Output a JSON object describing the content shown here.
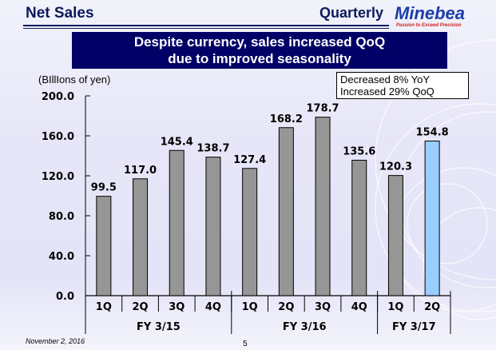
{
  "header": {
    "title": "Net Sales",
    "section": "Quarterly",
    "logo": "Minebea",
    "tagline": "Passion to Exceed Precision"
  },
  "banner": {
    "line1": "Despite currency, sales increased QoQ",
    "line2": "due to improved seasonality"
  },
  "note": {
    "line1": "Decreased  8% YoY",
    "line2": "Increased  29% QoQ"
  },
  "footer": {
    "date": "November 2, 2016",
    "page": "5"
  },
  "colors": {
    "bar": "#969696",
    "highlight": "#99ccff",
    "banner": "#000066"
  },
  "chart_data": {
    "type": "bar",
    "ylabel": "(BIllIons of yen)",
    "ylim": [
      0,
      200
    ],
    "yticks": [
      "0.0",
      "40.0",
      "80.0",
      "120.0",
      "160.0",
      "200.0"
    ],
    "categories": [
      "1Q",
      "2Q",
      "3Q",
      "4Q",
      "1Q",
      "2Q",
      "3Q",
      "4Q",
      "1Q",
      "2Q"
    ],
    "groups": [
      {
        "label": "FY 3/15",
        "count": 4
      },
      {
        "label": "FY 3/16",
        "count": 4
      },
      {
        "label": "FY 3/17",
        "count": 2
      }
    ],
    "values": [
      99.5,
      117.0,
      145.4,
      138.7,
      127.4,
      168.2,
      178.7,
      135.6,
      120.3,
      154.8
    ],
    "labels": [
      "99.5",
      "117.0",
      "145.4",
      "138.7",
      "127.4",
      "168.2",
      "178.7",
      "135.6",
      "120.3",
      "154.8"
    ],
    "highlight_index": 9
  }
}
